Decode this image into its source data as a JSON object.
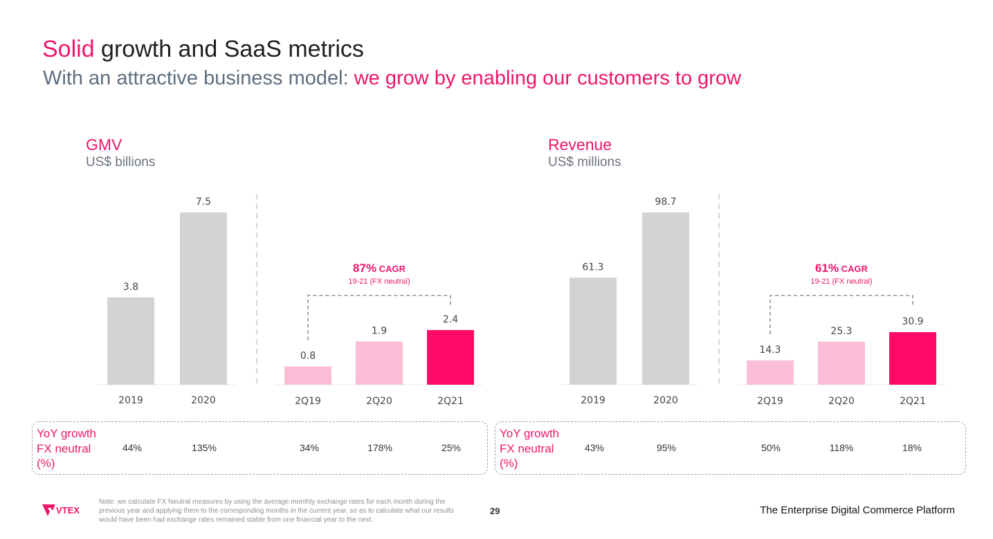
{
  "slide": {
    "title_highlight": "Solid",
    "title_rest": " growth and SaaS metrics",
    "subtitle_plain": "With an attractive business model: ",
    "subtitle_highlight": "we grow by enabling our customers to grow",
    "footnote": "Note: we calculate FX Neutral measures by using the average monthly exchange rates for each month during the previous year and applying them to the corresponding months in the current year, so as to calculate what our results would have been had exchange rates remained stable from one financial year to the next.",
    "page_number": "29",
    "tagline": "The Enterprise Digital Commerce Platform",
    "logo_text": "VTEX"
  },
  "colors": {
    "accent": "#f0156a",
    "gray_bar": "#d3d3d3",
    "light_pink_bar": "#fbbdd7",
    "dark_pink_bar": "#ff0a64",
    "subtitle_gray": "#5e6e80"
  },
  "chart_data": [
    {
      "type": "bar",
      "title": "GMV",
      "subtitle": "US$ billions",
      "annual": {
        "categories": [
          "2019",
          "2020"
        ],
        "values": [
          3.8,
          7.5
        ],
        "labels": [
          "3.8",
          "7.5"
        ]
      },
      "quarterly": {
        "categories": [
          "2Q19",
          "2Q20",
          "2Q21"
        ],
        "values": [
          0.8,
          1.9,
          2.4
        ],
        "labels": [
          "0.8",
          "1.9",
          "2.4"
        ]
      },
      "cagr": {
        "value": "87%",
        "suffix": "CAGR",
        "note": "19-21 (FX neutral)"
      },
      "yoy": {
        "label": "YoY growth\nFX neutral\n(%)",
        "annual": [
          "44%",
          "135%"
        ],
        "quarterly": [
          "34%",
          "178%",
          "25%"
        ]
      }
    },
    {
      "type": "bar",
      "title": "Revenue",
      "subtitle": "US$ millions",
      "annual": {
        "categories": [
          "2019",
          "2020"
        ],
        "values": [
          61.3,
          98.7
        ],
        "labels": [
          "61.3",
          "98.7"
        ]
      },
      "quarterly": {
        "categories": [
          "2Q19",
          "2Q20",
          "2Q21"
        ],
        "values": [
          14.3,
          25.3,
          30.9
        ],
        "labels": [
          "14.3",
          "25.3",
          "30.9"
        ]
      },
      "cagr": {
        "value": "61%",
        "suffix": "CAGR",
        "note": "19-21 (FX neutral)"
      },
      "yoy": {
        "label": "YoY growth\nFX neutral\n(%)",
        "annual": [
          "43%",
          "95%"
        ],
        "quarterly": [
          "50%",
          "118%",
          "18%"
        ]
      }
    }
  ]
}
